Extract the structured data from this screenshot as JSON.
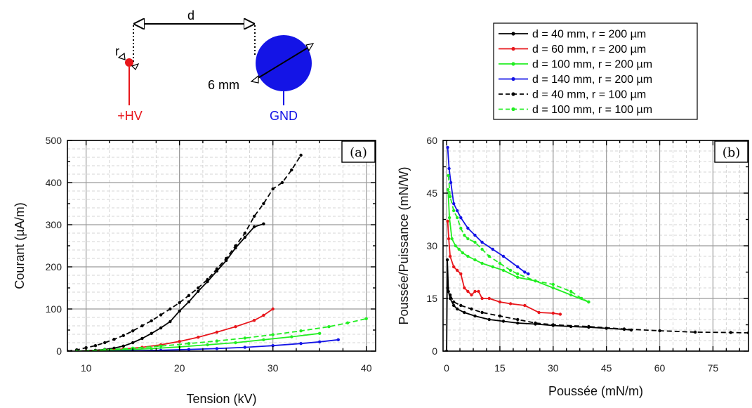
{
  "schematic": {
    "distance_label": "d",
    "radius_label": "r",
    "diameter_label": "6 mm",
    "hv_label": "+HV",
    "gnd_label": "GND",
    "hv_color": "#e8161b",
    "gnd_color": "#1414e6"
  },
  "legend": [
    {
      "label": "d = 40 mm,   r = 200 µm",
      "color": "#000000",
      "dash": false
    },
    {
      "label": "d = 60 mm,   r = 200 µm",
      "color": "#e8161b",
      "dash": false
    },
    {
      "label": "d = 100 mm, r = 200 µm",
      "color": "#22ee22",
      "dash": false
    },
    {
      "label": "d = 140 mm, r = 200 µm",
      "color": "#1414e6",
      "dash": false
    },
    {
      "label": "d = 40 mm,   r = 100 µm",
      "color": "#000000",
      "dash": true
    },
    {
      "label": "d = 100 mm, r = 100 µm",
      "color": "#22ee22",
      "dash": true
    }
  ],
  "chart_data": [
    {
      "type": "line",
      "panel_label": "(a)",
      "xlabel": "Tension (kV)",
      "ylabel": "Courant (µA/m)",
      "xlim": [
        8,
        41
      ],
      "ylim": [
        0,
        500
      ],
      "xticks": [
        10,
        20,
        30,
        40
      ],
      "yticks": [
        0,
        100,
        200,
        300,
        400,
        500
      ],
      "grid": true,
      "series": [
        {
          "legend_index": 0,
          "x": [
            9,
            10,
            11,
            12,
            13,
            14,
            15,
            16,
            17,
            18,
            19,
            20,
            21,
            22,
            23,
            24,
            25,
            26,
            27,
            28,
            29
          ],
          "y": [
            0,
            1,
            2,
            4,
            7,
            12,
            20,
            30,
            42,
            55,
            70,
            95,
            117,
            142,
            165,
            190,
            215,
            245,
            270,
            295,
            302
          ]
        },
        {
          "legend_index": 1,
          "x": [
            10,
            12,
            14,
            16,
            18,
            20,
            22,
            24,
            26,
            28,
            29,
            30
          ],
          "y": [
            0,
            2,
            5,
            9,
            15,
            23,
            33,
            45,
            58,
            73,
            85,
            100
          ]
        },
        {
          "legend_index": 2,
          "x": [
            11,
            14,
            17,
            20,
            23,
            26,
            29,
            32,
            35
          ],
          "y": [
            0,
            3,
            6,
            10,
            15,
            20,
            27,
            34,
            42
          ]
        },
        {
          "legend_index": 3,
          "x": [
            12,
            15,
            18,
            21,
            24,
            27,
            30,
            33,
            35,
            37
          ],
          "y": [
            0,
            1,
            2,
            4,
            6,
            9,
            13,
            18,
            22,
            27
          ]
        },
        {
          "legend_index": 4,
          "x": [
            8,
            9,
            10,
            11,
            12,
            13,
            14,
            15,
            16,
            17,
            18,
            19,
            20,
            21,
            22,
            23,
            24,
            25,
            26,
            27,
            28,
            29,
            30,
            31,
            32,
            33
          ],
          "y": [
            0,
            3,
            8,
            13,
            20,
            28,
            37,
            48,
            60,
            72,
            86,
            100,
            115,
            132,
            150,
            170,
            195,
            220,
            250,
            280,
            320,
            350,
            385,
            400,
            430,
            465
          ]
        },
        {
          "legend_index": 5,
          "x": [
            9,
            12,
            15,
            18,
            21,
            24,
            27,
            30,
            33,
            36,
            38,
            40
          ],
          "y": [
            0,
            3,
            7,
            12,
            18,
            24,
            31,
            39,
            48,
            58,
            67,
            77
          ]
        }
      ]
    },
    {
      "type": "line",
      "panel_label": "(b)",
      "xlabel": "Poussée (mN/m)",
      "ylabel": "Poussée/Puissance (mN/W)",
      "xlim": [
        -1,
        85
      ],
      "ylim": [
        0,
        60
      ],
      "xticks": [
        0,
        15,
        30,
        45,
        60,
        75
      ],
      "yticks": [
        0,
        15,
        30,
        45,
        60
      ],
      "grid": true,
      "series": [
        {
          "legend_index": 0,
          "x": [
            0,
            0.2,
            0.5,
            1,
            2,
            3,
            5,
            8,
            12,
            16,
            20,
            25,
            30,
            35,
            40,
            45,
            50,
            52
          ],
          "y": [
            0,
            26,
            17,
            15,
            13,
            12,
            11,
            10,
            9,
            8.5,
            8,
            7.7,
            7.3,
            7,
            6.8,
            6.5,
            6.2,
            6
          ]
        },
        {
          "legend_index": 1,
          "x": [
            0.3,
            0.6,
            1,
            2,
            3,
            4,
            5,
            6,
            7,
            8,
            9,
            10,
            12,
            15,
            18,
            22,
            26,
            30,
            32
          ],
          "y": [
            37,
            32,
            27,
            24,
            23,
            22,
            18,
            17,
            16,
            17,
            17,
            15,
            15,
            14,
            13.5,
            13,
            11,
            10.8,
            10.5
          ]
        },
        {
          "legend_index": 2,
          "x": [
            0.4,
            0.8,
            1.5,
            2.5,
            3.5,
            4.5,
            6,
            8,
            10,
            13,
            16,
            20,
            25,
            30,
            35,
            40
          ],
          "y": [
            46,
            38,
            32,
            30,
            29,
            28,
            27,
            26,
            25,
            24,
            23,
            21,
            20,
            18,
            16,
            14
          ]
        },
        {
          "legend_index": 3,
          "x": [
            0.3,
            0.7,
            1.2,
            2,
            3,
            4,
            6,
            8,
            10,
            13,
            16,
            20,
            22,
            23
          ],
          "y": [
            58,
            52,
            48,
            42,
            40,
            38,
            35,
            33,
            31,
            29,
            27,
            24,
            22.5,
            22
          ]
        },
        {
          "legend_index": 4,
          "x": [
            0.3,
            1,
            2,
            4,
            7,
            10,
            15,
            20,
            25,
            30,
            40,
            50,
            60,
            70,
            80,
            85
          ],
          "y": [
            18,
            16,
            14,
            13,
            12,
            11,
            10,
            9,
            8,
            7.5,
            7,
            6.3,
            5.8,
            5.4,
            5.3,
            5.2
          ]
        },
        {
          "legend_index": 5,
          "x": [
            0.5,
            1,
            2,
            3,
            4,
            5,
            6,
            8,
            10,
            12,
            15,
            18,
            20,
            25,
            30,
            35,
            38,
            40
          ],
          "y": [
            50,
            44,
            40,
            38,
            35,
            33,
            32,
            31,
            29,
            27,
            25,
            23,
            22,
            20,
            19,
            17,
            15,
            14
          ]
        }
      ]
    }
  ]
}
